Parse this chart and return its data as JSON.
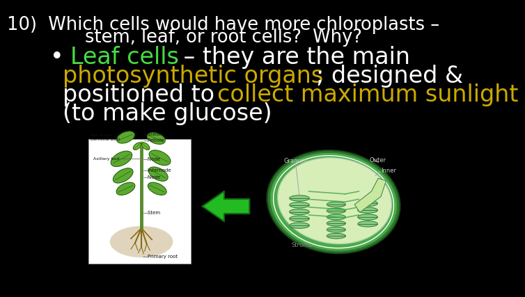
{
  "background_color": "#000000",
  "title_line1": "10)  Which cells would have more chloroplasts –",
  "title_line2": "stem, leaf, or root cells?  Why?",
  "title_color": "#ffffff",
  "title_fontsize": 18.5,
  "bullet_line1": [
    {
      "text": "• ",
      "color": "#ffffff"
    },
    {
      "text": "Leaf cells",
      "color": "#44dd44"
    },
    {
      "text": " – they are the main",
      "color": "#ffffff"
    }
  ],
  "bullet_line2": [
    {
      "text": "photosynthetic organs",
      "color": "#ccaa00"
    },
    {
      "text": "; designed &",
      "color": "#ffffff"
    }
  ],
  "bullet_line3": [
    {
      "text": "positioned to ",
      "color": "#ffffff"
    },
    {
      "text": "collect maximum sunlight",
      "color": "#ccaa00"
    }
  ],
  "bullet_line4": [
    {
      "text": "(to make glucose)",
      "color": "#ffffff"
    }
  ],
  "bullet_fontsize": 24,
  "arrow_color": "#22bb22",
  "plant_bg": "#ffffff",
  "chloro_outer": "#3a9a3a",
  "chloro_inner": "#c5e8a0",
  "chloro_stroma": "#d8eec0",
  "thylakoid_fill": "#7ec87e",
  "thylakoid_dark": "#2d7a2d",
  "granum_fill": "#5ab55a",
  "font_family": "DejaVu Sans"
}
